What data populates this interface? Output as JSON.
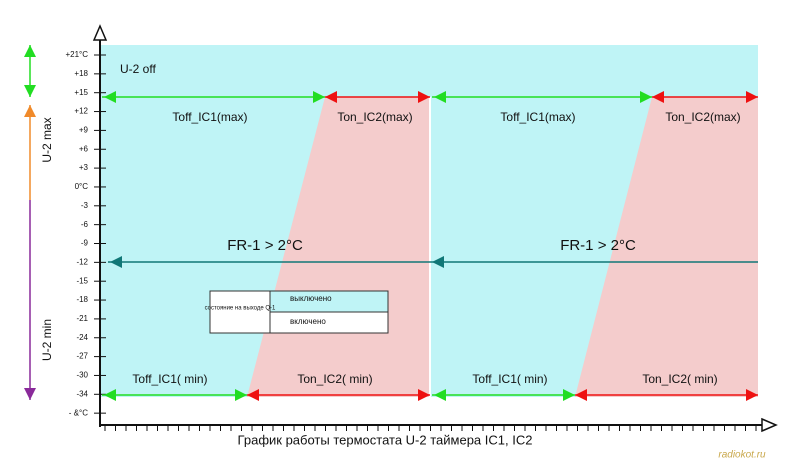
{
  "y_axis": {
    "ticks": [
      "+21°C",
      "+18",
      "+15",
      "+12",
      "+9",
      "+6",
      "+3",
      "0°C",
      "-3",
      "-6",
      "-9",
      "-12",
      "-15",
      "-18",
      "-21",
      "-24",
      "-27",
      "-30",
      "-34",
      "- &°C"
    ]
  },
  "zones": {
    "off": "U-2 off",
    "max": "U-2 max",
    "min": "U-2 min"
  },
  "period_1": {
    "toff_max": "Toff_IC1(max)",
    "ton_max": "Ton_IC2(max)",
    "fr": "FR-1 > 2°C",
    "toff_min": "Toff_IC1( min)",
    "ton_min": "Ton_IC2( min)"
  },
  "period_2": {
    "toff_max": "Toff_IC1(max)",
    "ton_max": "Ton_IC2(max)",
    "fr": "FR-1 > 2°C",
    "toff_min": "Toff_IC1( min)",
    "ton_min": "Ton_IC2( min)"
  },
  "legend": {
    "state": "состояние на выходе Q-1",
    "off": "выключено",
    "on": "включено"
  },
  "caption": "График работы термостата U-2 таймера IC1, IC2",
  "watermark": "radiokot.ru"
}
